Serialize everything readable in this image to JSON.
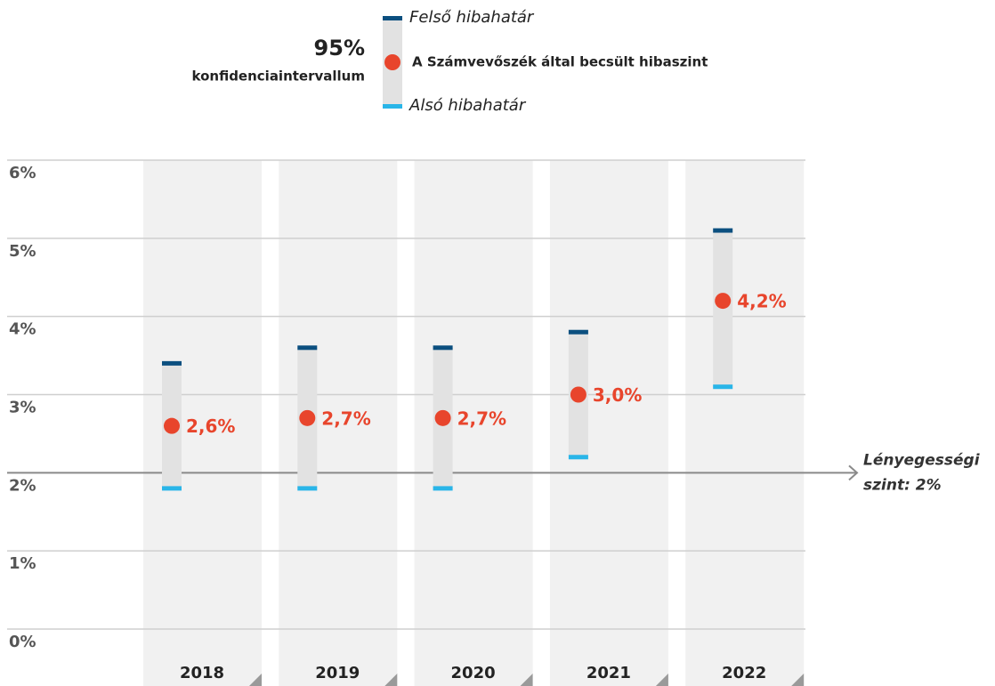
{
  "chart_data": {
    "type": "errorbar",
    "interval_label": {
      "title": "95%",
      "subtitle": "konfidenciaintervallum"
    },
    "upper_name": "Felső hibahatár",
    "upper_color": "#0b4f7f",
    "lower_name": "Alsó hibahatár",
    "lower_color": "#29b5e8",
    "interval_color": "#e2e2e2",
    "categories": [
      "2018",
      "2019",
      "2020",
      "2021",
      "2022"
    ],
    "series": [
      {
        "name": "A Számvevőszék által becsült hibaszint",
        "color": "#e8452c",
        "values": [
          2.6,
          2.7,
          2.7,
          3.0,
          4.2
        ],
        "value_labels": [
          "2,6%",
          "2,7%",
          "2,7%",
          "3,0%",
          "4,2%"
        ],
        "upper": [
          3.4,
          3.6,
          3.6,
          3.8,
          5.1
        ],
        "lower": [
          1.8,
          1.8,
          1.8,
          2.2,
          3.1
        ]
      }
    ],
    "threshold": {
      "value": 2,
      "label": [
        "Lényegességi",
        "szint: 2%"
      ]
    },
    "ylim": [
      0,
      6
    ],
    "yticks": [
      {
        "value": 0,
        "label": "0%"
      },
      {
        "value": 1,
        "label": "1%"
      },
      {
        "value": 2,
        "label": "2%"
      },
      {
        "value": 3,
        "label": "3%"
      },
      {
        "value": 4,
        "label": "4%"
      },
      {
        "value": 5,
        "label": "5%"
      },
      {
        "value": 6,
        "label": "6%"
      }
    ],
    "grid": true
  }
}
